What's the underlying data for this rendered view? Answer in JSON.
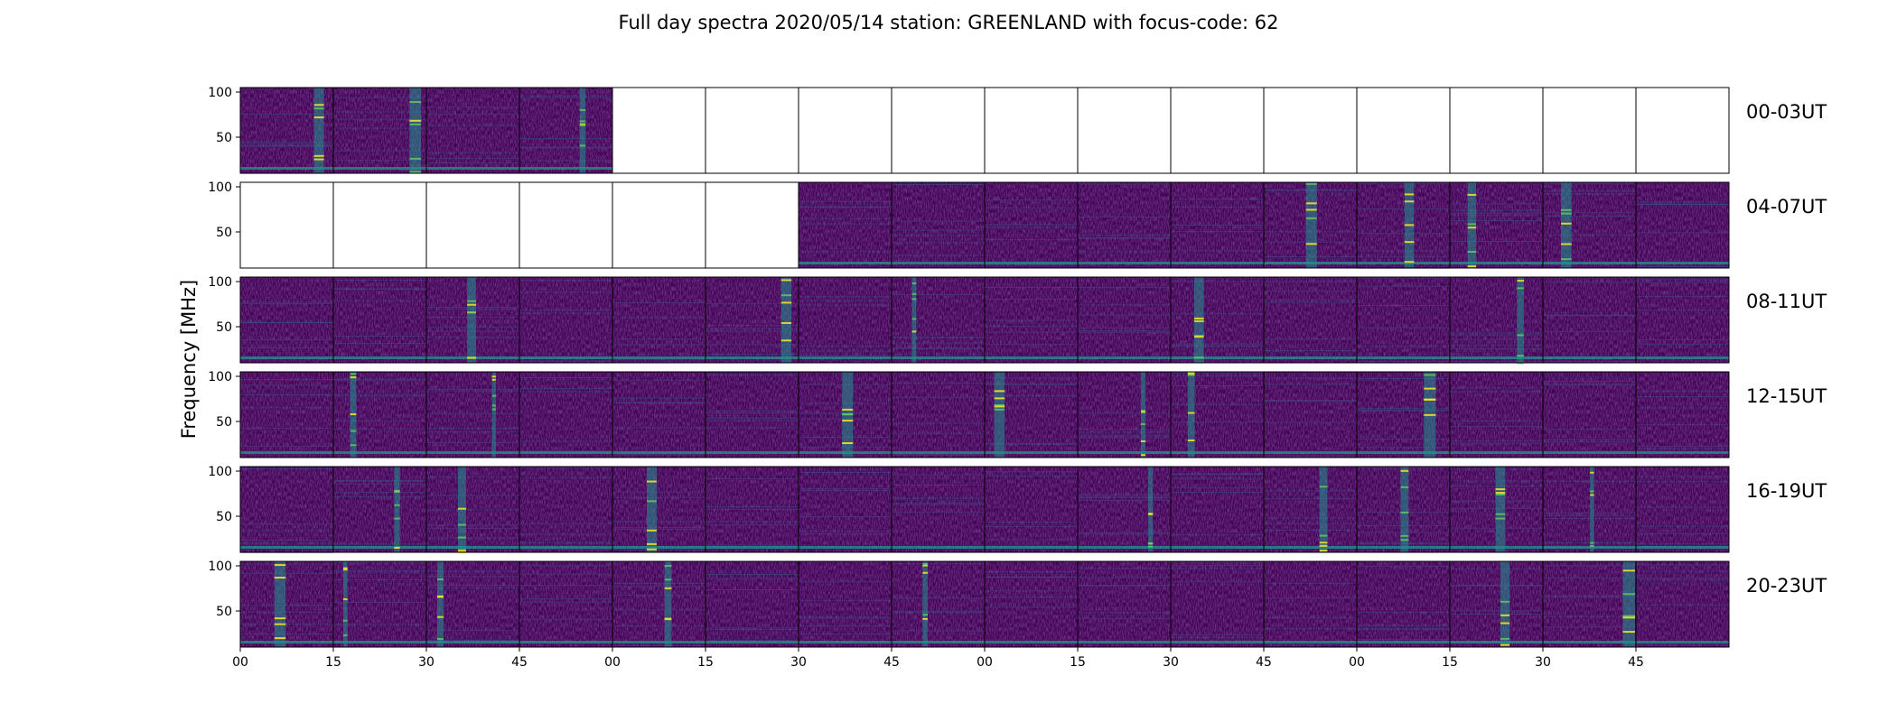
{
  "chart_data": {
    "type": "heatmap",
    "title": "Full day spectra 2020/05/14 station: GREENLAND with focus-code: 62",
    "ylabel": "Frequency [MHz]",
    "xlabel": "",
    "ylim": [
      10,
      105
    ],
    "y_ticks": [
      "100",
      "50"
    ],
    "y_tick_values": [
      100,
      50
    ],
    "x_ticks": [
      "00",
      "15",
      "30",
      "45",
      "00",
      "15",
      "30",
      "45",
      "00",
      "15",
      "30",
      "45",
      "00",
      "15",
      "30",
      "45"
    ],
    "rows": [
      {
        "label": "00-03UT",
        "segments_with_data": [
          0,
          1,
          2,
          3
        ]
      },
      {
        "label": "04-07UT",
        "segments_with_data": [
          6,
          7,
          8,
          9,
          10,
          11,
          12,
          13,
          14,
          15
        ]
      },
      {
        "label": "08-11UT",
        "segments_with_data": [
          0,
          1,
          2,
          3,
          4,
          5,
          6,
          7,
          8,
          9,
          10,
          11,
          12,
          13,
          14,
          15
        ]
      },
      {
        "label": "12-15UT",
        "segments_with_data": [
          0,
          1,
          2,
          3,
          4,
          5,
          6,
          7,
          8,
          9,
          10,
          11,
          12,
          13,
          14,
          15
        ]
      },
      {
        "label": "16-19UT",
        "segments_with_data": [
          0,
          1,
          2,
          3,
          4,
          5,
          6,
          7,
          8,
          9,
          10,
          11,
          12,
          13,
          14,
          15
        ]
      },
      {
        "label": "20-23UT",
        "segments_with_data": [
          0,
          1,
          2,
          3,
          4,
          5,
          6,
          7,
          8,
          9,
          10,
          11,
          12,
          13,
          14,
          15
        ]
      }
    ],
    "colormap": [
      "#440154",
      "#3b528b",
      "#21918c",
      "#5ec962",
      "#fde725"
    ],
    "grid": false
  }
}
